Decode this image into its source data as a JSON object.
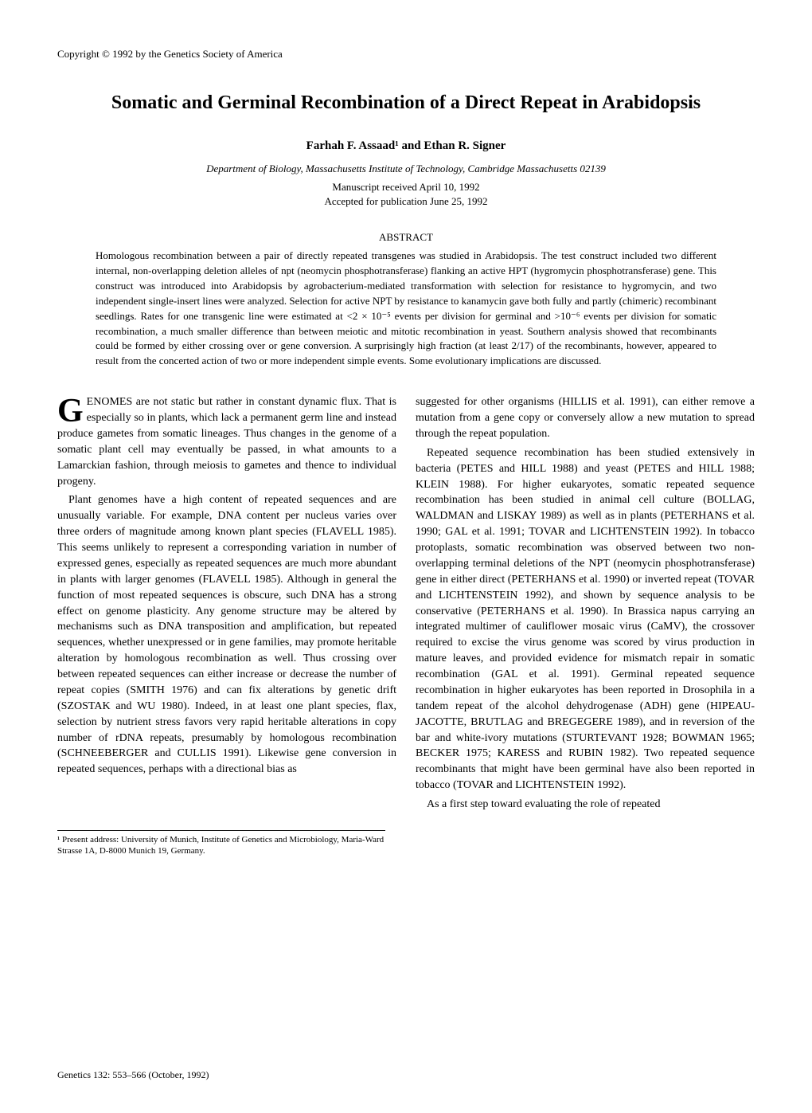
{
  "copyright": "Copyright © 1992 by the Genetics Society of America",
  "title": "Somatic and Germinal Recombination of a Direct Repeat in Arabidopsis",
  "authors": "Farhah F. Assaad¹ and Ethan R. Signer",
  "affiliation": "Department of Biology, Massachusetts Institute of Technology, Cambridge Massachusetts 02139",
  "dates": {
    "received": "Manuscript received April 10, 1992",
    "accepted": "Accepted for publication June 25, 1992"
  },
  "abstract_label": "ABSTRACT",
  "abstract": "Homologous recombination between a pair of directly repeated transgenes was studied in Arabidopsis. The test construct included two different internal, non-overlapping deletion alleles of npt (neomycin phosphotransferase) flanking an active HPT (hygromycin phosphotransferase) gene. This construct was introduced into Arabidopsis by agrobacterium-mediated transformation with selection for resistance to hygromycin, and two independent single-insert lines were analyzed. Selection for active NPT by resistance to kanamycin gave both fully and partly (chimeric) recombinant seedlings. Rates for one transgenic line were estimated at <2 × 10⁻⁵ events per division for germinal and >10⁻⁶ events per division for somatic recombination, a much smaller difference than between meiotic and mitotic recombination in yeast. Southern analysis showed that recombinants could be formed by either crossing over or gene conversion. A surprisingly high fraction (at least 2/17) of the recombinants, however, appeared to result from the concerted action of two or more independent simple events. Some evolutionary implications are discussed.",
  "body": {
    "p1_dropcap": "G",
    "p1": "ENOMES are not static but rather in constant dynamic flux. That is especially so in plants, which lack a permanent germ line and instead produce gametes from somatic lineages. Thus changes in the genome of a somatic plant cell may eventually be passed, in what amounts to a Lamarckian fashion, through meiosis to gametes and thence to individual progeny.",
    "p2": "Plant genomes have a high content of repeated sequences and are unusually variable. For example, DNA content per nucleus varies over three orders of magnitude among known plant species (FLAVELL 1985). This seems unlikely to represent a corresponding variation in number of expressed genes, especially as repeated sequences are much more abundant in plants with larger genomes (FLAVELL 1985). Although in general the function of most repeated sequences is obscure, such DNA has a strong effect on genome plasticity. Any genome structure may be altered by mechanisms such as DNA transposition and amplification, but repeated sequences, whether unexpressed or in gene families, may promote heritable alteration by homologous recombination as well. Thus crossing over between repeated sequences can either increase or decrease the number of repeat copies (SMITH 1976) and can fix alterations by genetic drift (SZOSTAK and WU 1980). Indeed, in at least one plant species, flax, selection by nutrient stress favors very rapid heritable alterations in copy number of rDNA repeats, presumably by homologous recombination (SCHNEEBERGER and CULLIS 1991). Likewise gene conversion in repeated sequences, perhaps with a directional bias as",
    "p3": "suggested for other organisms (HILLIS et al. 1991), can either remove a mutation from a gene copy or conversely allow a new mutation to spread through the repeat population.",
    "p4": "Repeated sequence recombination has been studied extensively in bacteria (PETES and HILL 1988) and yeast (PETES and HILL 1988; KLEIN 1988). For higher eukaryotes, somatic repeated sequence recombination has been studied in animal cell culture (BOLLAG, WALDMAN and LISKAY 1989) as well as in plants (PETERHANS et al. 1990; GAL et al. 1991; TOVAR and LICHTENSTEIN 1992). In tobacco protoplasts, somatic recombination was observed between two non-overlapping terminal deletions of the NPT (neomycin phosphotransferase) gene in either direct (PETERHANS et al. 1990) or inverted repeat (TOVAR and LICHTENSTEIN 1992), and shown by sequence analysis to be conservative (PETERHANS et al. 1990). In Brassica napus carrying an integrated multimer of cauliflower mosaic virus (CaMV), the crossover required to excise the virus genome was scored by virus production in mature leaves, and provided evidence for mismatch repair in somatic recombination (GAL et al. 1991). Germinal repeated sequence recombination in higher eukaryotes has been reported in Drosophila in a tandem repeat of the alcohol dehydrogenase (ADH) gene (HIPEAU-JACOTTE, BRUTLAG and BREGEGERE 1989), and in reversion of the bar and white-ivory mutations (STURTEVANT 1928; BOWMAN 1965; BECKER 1975; KARESS and RUBIN 1982). Two repeated sequence recombinants that might have been germinal have also been reported in tobacco (TOVAR and LICHTENSTEIN 1992).",
    "p5": "As a first step toward evaluating the role of repeated"
  },
  "footnote": "¹ Present address: University of Munich, Institute of Genetics and Microbiology, Maria-Ward Strasse 1A, D-8000 Munich 19, Germany.",
  "footer": "Genetics 132: 553–566 (October, 1992)"
}
